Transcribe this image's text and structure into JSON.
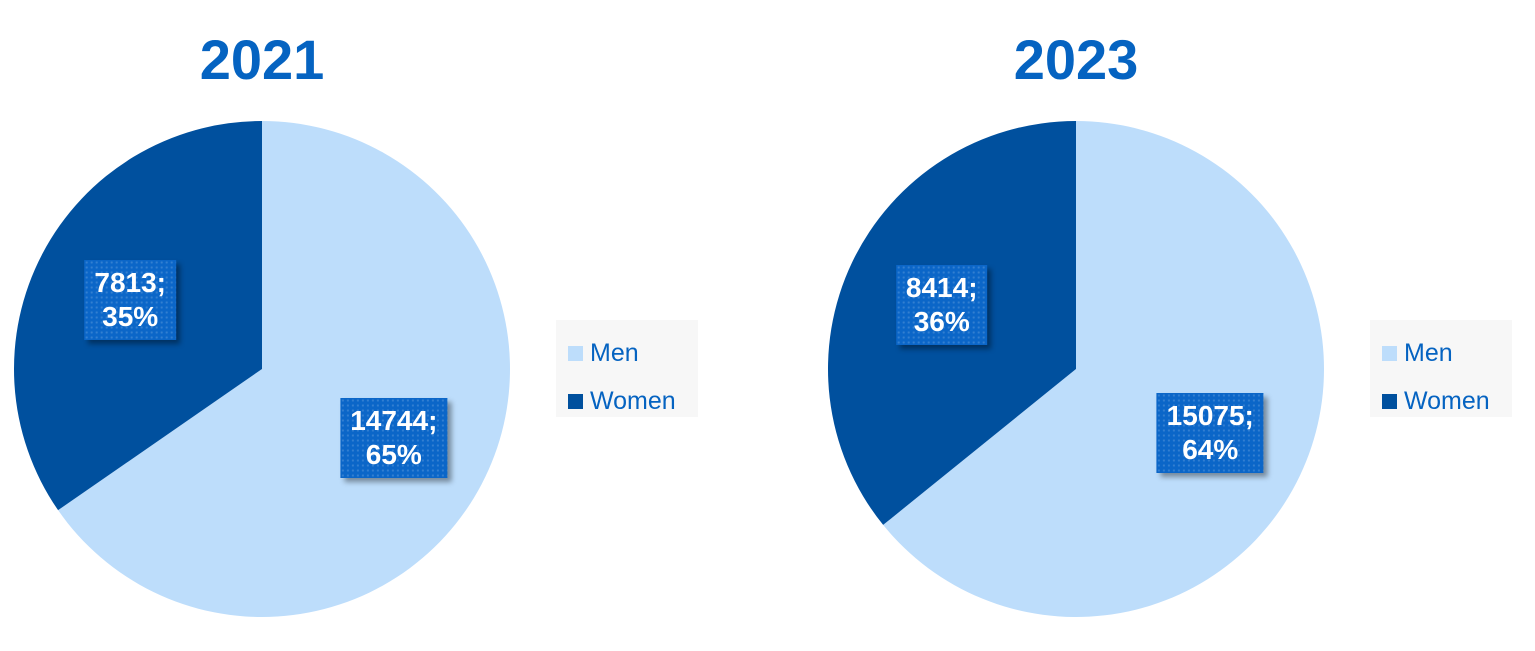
{
  "chart_data": [
    {
      "type": "pie",
      "title": "2021",
      "categories": [
        "Men",
        "Women"
      ],
      "values": [
        14744,
        7813
      ],
      "percent_labels": [
        "65%",
        "35%"
      ],
      "data_labels": [
        "14744;",
        "7813;"
      ],
      "colors": [
        "#BDDDFB",
        "#00509E"
      ],
      "legend": {
        "position": "right",
        "entries": [
          "Men",
          "Women"
        ]
      }
    },
    {
      "type": "pie",
      "title": "2023",
      "categories": [
        "Men",
        "Women"
      ],
      "values": [
        15075,
        8414
      ],
      "percent_labels": [
        "64%",
        "36%"
      ],
      "data_labels": [
        "15075;",
        "8414;"
      ],
      "colors": [
        "#BDDDFB",
        "#00509E"
      ],
      "legend": {
        "position": "right",
        "entries": [
          "Men",
          "Women"
        ]
      }
    }
  ],
  "theme": {
    "title_color": "#0563C1",
    "label_box_color": "#0B66C8",
    "label_text_color": "#FFFFFF",
    "legend_text_color": "#0563C1"
  }
}
